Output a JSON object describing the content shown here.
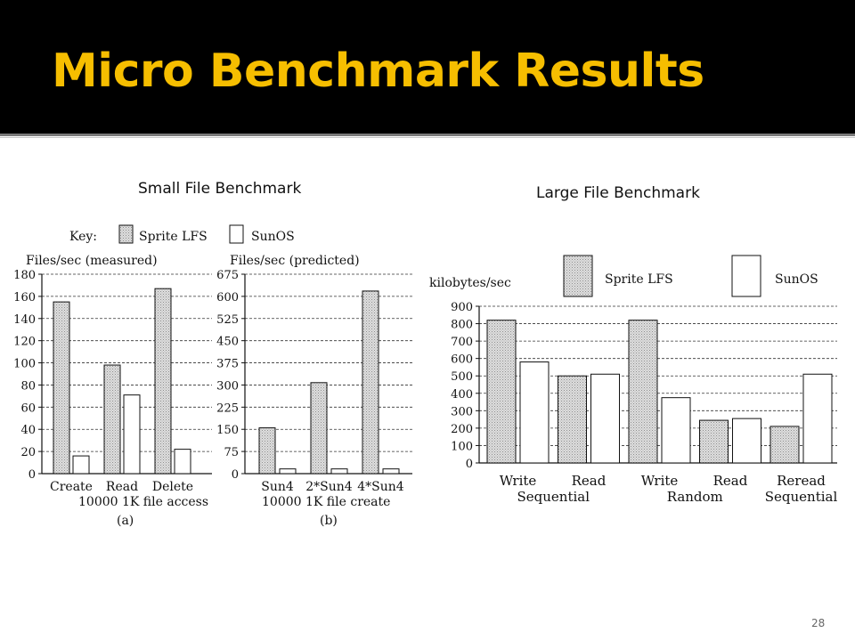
{
  "slide": {
    "title": "Micro Benchmark Results",
    "small_caption": "Small File Benchmark",
    "large_caption": "Large File Benchmark",
    "page_number": "28"
  },
  "colors": {
    "title_bar": "#000000",
    "title_text": "#F6BE00",
    "lfs_fill": "#d6d6d6",
    "sunos_fill": "#ffffff"
  },
  "key": {
    "label": "Key:",
    "lfs": "Sprite LFS",
    "sunos": "SunOS"
  },
  "chart_data": [
    {
      "type": "bar",
      "ylabel": "Files/sec (measured)",
      "ylim": [
        0,
        180
      ],
      "yticks": [
        "0",
        "20",
        "40",
        "60",
        "80",
        "100",
        "120",
        "140",
        "160",
        "180"
      ],
      "categories": [
        "Create",
        "Read",
        "Delete"
      ],
      "xsub": "10000 1K file access",
      "caption": "(a)",
      "grid": true,
      "series": [
        {
          "name": "Sprite LFS",
          "values": [
            155,
            98,
            167
          ]
        },
        {
          "name": "SunOS",
          "values": [
            16,
            71,
            22
          ]
        }
      ]
    },
    {
      "type": "bar",
      "ylabel": "Files/sec (predicted)",
      "ylim": [
        0,
        675
      ],
      "yticks": [
        "0",
        "75",
        "150",
        "225",
        "300",
        "375",
        "450",
        "525",
        "600",
        "675"
      ],
      "categories": [
        "Sun4",
        "2*Sun4",
        "4*Sun4"
      ],
      "xsub": "10000 1K file create",
      "caption": "(b)",
      "grid": true,
      "series": [
        {
          "name": "Sprite LFS",
          "values": [
            155,
            308,
            618
          ]
        },
        {
          "name": "SunOS",
          "values": [
            16,
            16,
            16
          ]
        }
      ]
    },
    {
      "type": "bar",
      "ylabel": "kilobytes/sec",
      "ylim": [
        0,
        900
      ],
      "yticks": [
        "0",
        "100",
        "200",
        "300",
        "400",
        "500",
        "600",
        "700",
        "800",
        "900"
      ],
      "categories": [
        "Write",
        "Read",
        "Write",
        "Read",
        "Reread"
      ],
      "groups": [
        {
          "label": "Sequential",
          "span": [
            0,
            1
          ]
        },
        {
          "label": "Random",
          "span": [
            2,
            3
          ]
        },
        {
          "label": "Sequential",
          "span": [
            4,
            4
          ]
        }
      ],
      "grid": true,
      "legend_position": "top",
      "series": [
        {
          "name": "Sprite LFS",
          "values": [
            820,
            500,
            820,
            245,
            210
          ]
        },
        {
          "name": "SunOS",
          "values": [
            580,
            510,
            375,
            255,
            510
          ]
        }
      ]
    }
  ]
}
